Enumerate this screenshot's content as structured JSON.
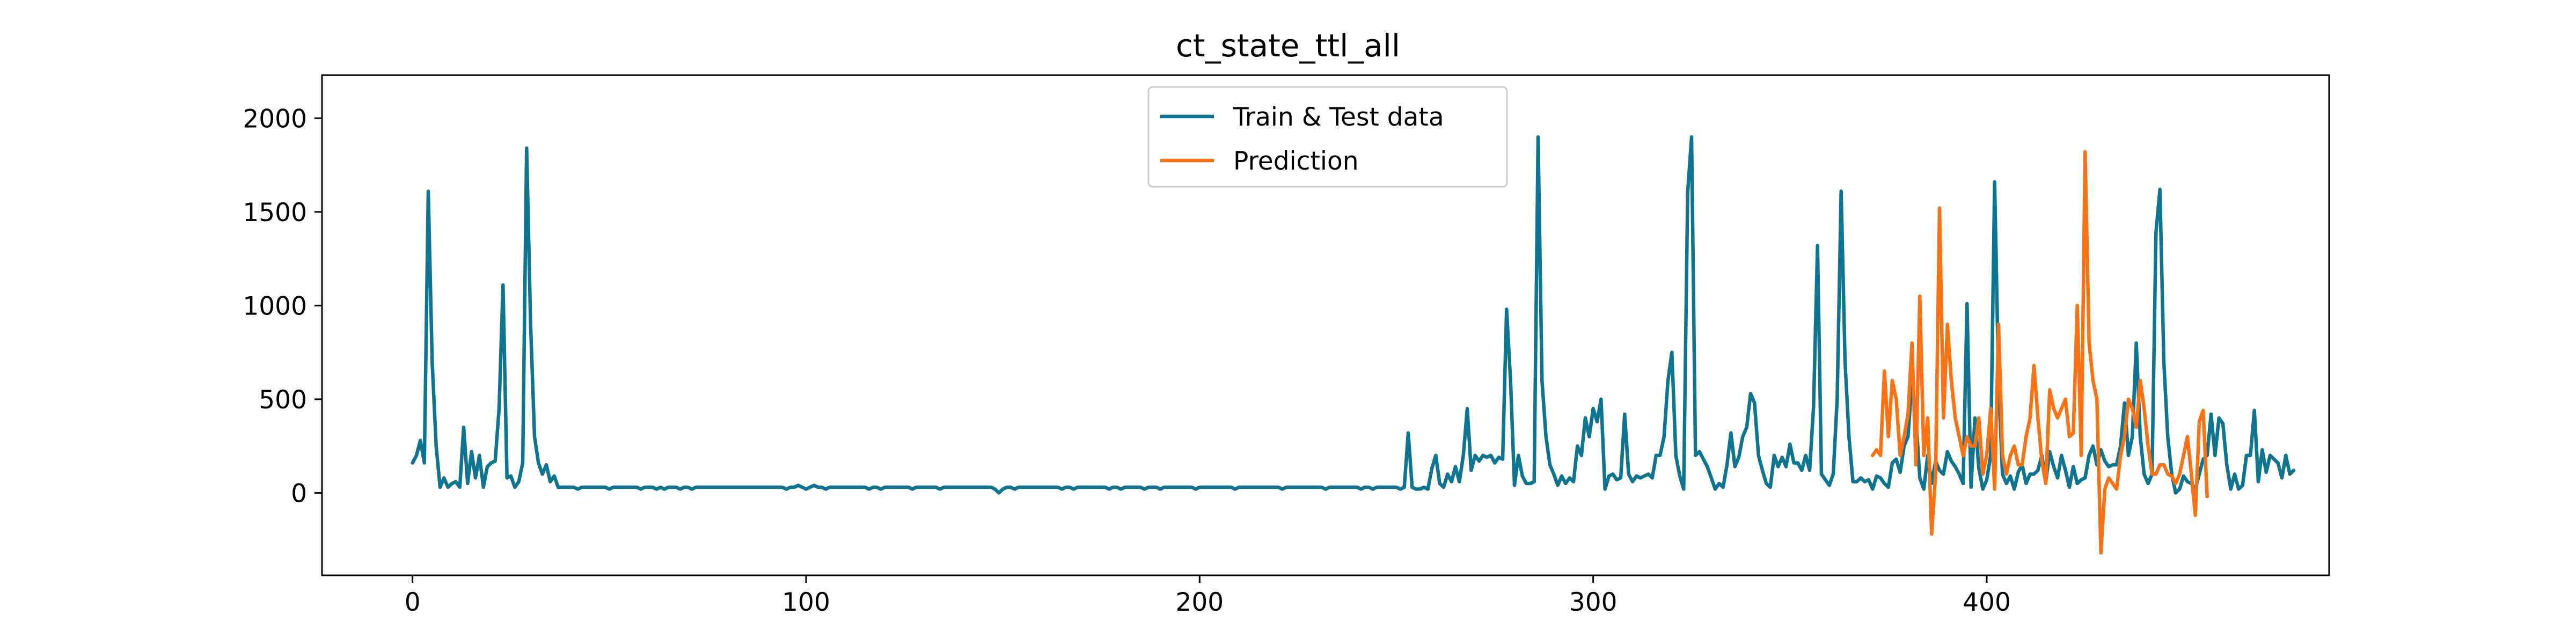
{
  "chart_data": {
    "type": "line",
    "title": "ct_state_ttl_all",
    "xlabel": "",
    "ylabel": "",
    "xlim": [
      -23,
      487
    ],
    "ylim": [
      -440,
      2230
    ],
    "xticks": [
      0,
      100,
      200,
      300,
      400
    ],
    "yticks": [
      0,
      500,
      1000,
      1500,
      2000
    ],
    "grid": false,
    "legend_position": "top-center",
    "colors": {
      "Train & Test data": "#0e7490",
      "Prediction": "#f97316"
    },
    "series": [
      {
        "name": "Train & Test data",
        "x_start": 0,
        "values": [
          160,
          200,
          280,
          160,
          1610,
          700,
          250,
          30,
          80,
          30,
          50,
          60,
          30,
          350,
          50,
          220,
          80,
          200,
          30,
          140,
          160,
          170,
          450,
          1110,
          80,
          90,
          30,
          60,
          160,
          1840,
          900,
          300,
          160,
          100,
          150,
          60,
          90,
          30,
          30,
          30,
          30,
          30,
          20,
          30,
          30,
          30,
          30,
          30,
          30,
          30,
          20,
          30,
          30,
          30,
          30,
          30,
          30,
          30,
          20,
          30,
          30,
          30,
          20,
          30,
          20,
          30,
          30,
          30,
          20,
          30,
          30,
          20,
          30,
          30,
          30,
          30,
          30,
          30,
          30,
          30,
          30,
          30,
          30,
          30,
          30,
          30,
          30,
          30,
          30,
          30,
          30,
          30,
          30,
          30,
          30,
          20,
          30,
          30,
          40,
          30,
          20,
          30,
          40,
          30,
          30,
          20,
          30,
          30,
          30,
          30,
          30,
          30,
          30,
          30,
          30,
          30,
          20,
          30,
          30,
          20,
          30,
          30,
          30,
          30,
          30,
          30,
          30,
          20,
          30,
          30,
          30,
          30,
          30,
          30,
          20,
          30,
          30,
          30,
          30,
          30,
          30,
          30,
          30,
          30,
          30,
          30,
          30,
          30,
          20,
          0,
          20,
          30,
          30,
          20,
          30,
          30,
          30,
          30,
          30,
          30,
          30,
          30,
          30,
          30,
          30,
          20,
          30,
          30,
          20,
          30,
          30,
          30,
          30,
          30,
          30,
          30,
          30,
          20,
          30,
          30,
          20,
          30,
          30,
          30,
          30,
          30,
          20,
          30,
          30,
          30,
          20,
          30,
          30,
          30,
          30,
          30,
          30,
          30,
          30,
          20,
          30,
          30,
          30,
          30,
          30,
          30,
          30,
          30,
          30,
          20,
          30,
          30,
          30,
          30,
          30,
          30,
          30,
          30,
          30,
          30,
          30,
          20,
          30,
          30,
          30,
          30,
          30,
          30,
          30,
          30,
          30,
          30,
          20,
          30,
          30,
          30,
          30,
          30,
          30,
          30,
          30,
          20,
          30,
          30,
          20,
          30,
          30,
          30,
          30,
          30,
          30,
          20,
          30,
          320,
          30,
          20,
          20,
          30,
          20,
          130,
          200,
          50,
          30,
          100,
          60,
          140,
          60,
          200,
          450,
          120,
          200,
          170,
          200,
          190,
          200,
          160,
          190,
          180,
          980,
          600,
          40,
          200,
          90,
          50,
          50,
          60,
          1900,
          600,
          300,
          150,
          100,
          40,
          90,
          50,
          80,
          60,
          250,
          200,
          400,
          300,
          450,
          380,
          500,
          20,
          90,
          100,
          70,
          80,
          420,
          100,
          60,
          90,
          80,
          90,
          100,
          80,
          200,
          200,
          300,
          600,
          750,
          200,
          90,
          20,
          1600,
          1900,
          200,
          220,
          180,
          140,
          80,
          20,
          50,
          30,
          150,
          320,
          140,
          190,
          300,
          350,
          530,
          480,
          200,
          120,
          50,
          30,
          200,
          140,
          190,
          140,
          260,
          160,
          160,
          120,
          200,
          120,
          460,
          1320,
          100,
          70,
          40,
          100,
          500,
          1610,
          700,
          300,
          60,
          60,
          80,
          60,
          70,
          20,
          90,
          80,
          50,
          30,
          160,
          180,
          110,
          250,
          300,
          600,
          400,
          80,
          20,
          200,
          50,
          170,
          120,
          100,
          220,
          170,
          140,
          100,
          50,
          1010,
          30,
          400,
          130,
          20,
          70,
          200,
          1660,
          600,
          100,
          50,
          90,
          20,
          110,
          150,
          50,
          100,
          100,
          120,
          200,
          60,
          220,
          140,
          80,
          200,
          120,
          30,
          140,
          50,
          70,
          80,
          200,
          250,
          150,
          230,
          170,
          140,
          150,
          150,
          250,
          480,
          200,
          300,
          800,
          300,
          100,
          50,
          100,
          1390,
          1620,
          700,
          300,
          100,
          0,
          20,
          90,
          60,
          50,
          20,
          100,
          180,
          200,
          420,
          200,
          400,
          370,
          150,
          20,
          100,
          20,
          40,
          200,
          200,
          440,
          60,
          230,
          110,
          200,
          180,
          160,
          80,
          200,
          100,
          120
        ]
      },
      {
        "name": "Prediction",
        "x_start": 371,
        "values": [
          200,
          230,
          200,
          650,
          300,
          600,
          500,
          200,
          300,
          420,
          800,
          150,
          1050,
          200,
          400,
          -220,
          100,
          1520,
          400,
          900,
          600,
          400,
          300,
          200,
          300,
          250,
          250,
          400,
          100,
          200,
          450,
          20,
          900,
          200,
          100,
          200,
          250,
          150,
          150,
          300,
          400,
          680,
          400,
          170,
          50,
          550,
          450,
          400,
          450,
          500,
          300,
          320,
          1000,
          200,
          1820,
          800,
          600,
          500,
          -320,
          20,
          80,
          50,
          20,
          200,
          300,
          500,
          450,
          350,
          600,
          450,
          250,
          100,
          100,
          150,
          150,
          100,
          90,
          50,
          100,
          200,
          300,
          100,
          -120,
          380,
          440,
          -20
        ]
      }
    ]
  }
}
